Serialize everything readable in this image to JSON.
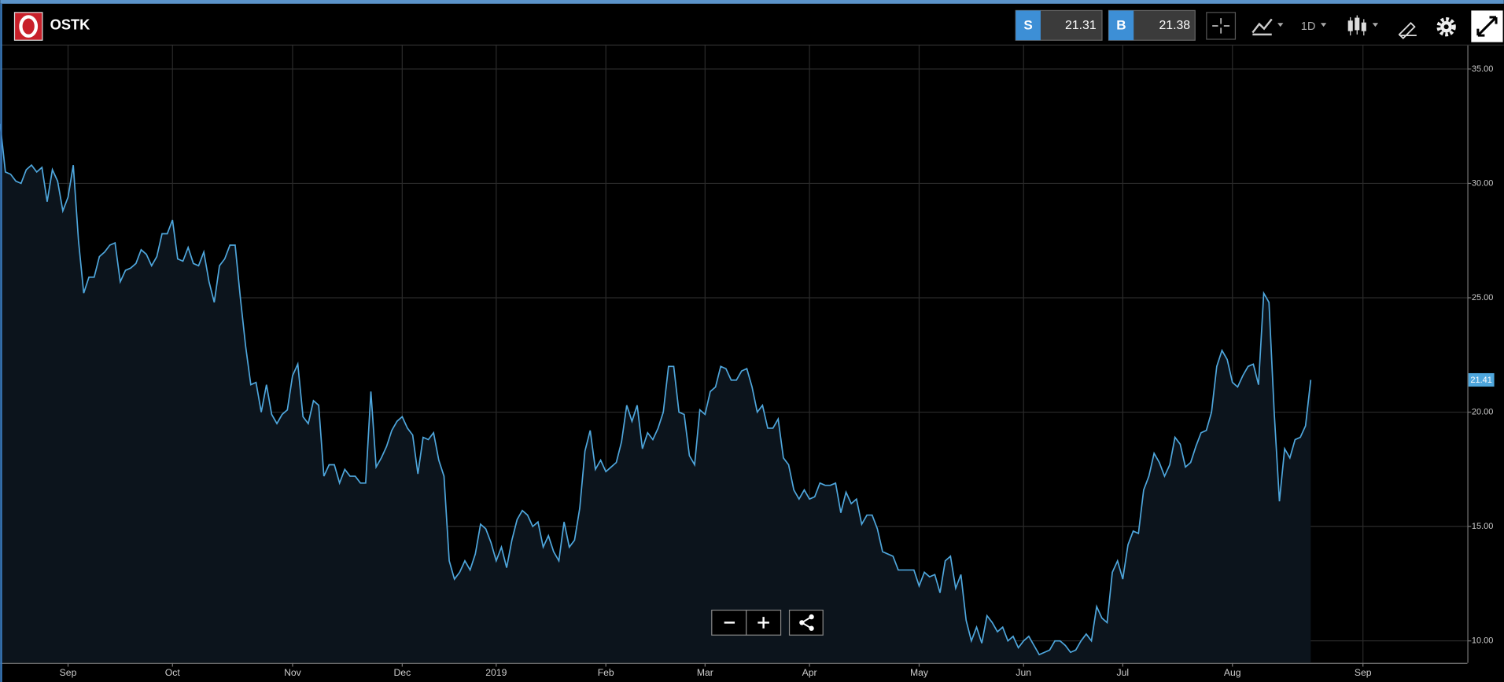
{
  "ui": {
    "symbol": "OSTK",
    "sell": {
      "label": "S",
      "price": 21.31
    },
    "buy": {
      "label": "B",
      "price": 21.38
    },
    "interval": "1D"
  },
  "chart_data": {
    "type": "line",
    "color": "#4ea6dc",
    "fill": "#0c141c",
    "grid": true,
    "categories": [
      null,
      null,
      null,
      null,
      null,
      null,
      null,
      null,
      null,
      null,
      null,
      null,
      null,
      "Sep",
      null,
      null,
      null,
      null,
      null,
      null,
      null,
      null,
      null,
      null,
      null,
      null,
      null,
      null,
      null,
      null,
      null,
      null,
      null,
      "Oct",
      null,
      null,
      null,
      null,
      null,
      null,
      null,
      null,
      null,
      null,
      null,
      null,
      null,
      null,
      null,
      null,
      null,
      null,
      null,
      null,
      null,
      null,
      "Nov",
      null,
      null,
      null,
      null,
      null,
      null,
      null,
      null,
      null,
      null,
      null,
      null,
      null,
      null,
      null,
      null,
      null,
      null,
      null,
      null,
      "Dec",
      null,
      null,
      null,
      null,
      null,
      null,
      null,
      null,
      null,
      null,
      null,
      null,
      null,
      null,
      null,
      null,
      null,
      "2019",
      null,
      null,
      null,
      null,
      null,
      null,
      null,
      null,
      null,
      null,
      null,
      null,
      null,
      null,
      null,
      null,
      null,
      null,
      null,
      null,
      "Feb",
      null,
      null,
      null,
      null,
      null,
      null,
      null,
      null,
      null,
      null,
      null,
      null,
      null,
      null,
      null,
      null,
      null,
      null,
      "Mar",
      null,
      null,
      null,
      null,
      null,
      null,
      null,
      null,
      null,
      null,
      null,
      null,
      null,
      null,
      null,
      null,
      null,
      null,
      null,
      "Apr",
      null,
      null,
      null,
      null,
      null,
      null,
      null,
      null,
      null,
      null,
      null,
      null,
      null,
      null,
      null,
      null,
      null,
      null,
      null,
      null,
      "May",
      null,
      null,
      null,
      null,
      null,
      null,
      null,
      null,
      null,
      null,
      null,
      null,
      null,
      null,
      null,
      null,
      null,
      null,
      null,
      "Jun",
      null,
      null,
      null,
      null,
      null,
      null,
      null,
      null,
      null,
      null,
      null,
      null,
      null,
      null,
      null,
      null,
      null,
      null,
      "Jul",
      null,
      null,
      null,
      null,
      null,
      null,
      null,
      null,
      null,
      null,
      null,
      null,
      null,
      null,
      null,
      null,
      null,
      null,
      null,
      null,
      "Aug",
      null,
      null,
      null,
      null,
      null,
      null,
      null,
      null,
      null,
      null,
      null,
      null,
      null,
      null,
      null,
      null,
      null,
      null,
      null,
      null,
      null,
      null,
      null,
      null,
      "Sep",
      null,
      null,
      null,
      null,
      null,
      null,
      null,
      null,
      null,
      null,
      null,
      null,
      null,
      null,
      null,
      null,
      null,
      null,
      null,
      null
    ],
    "values": [
      32.6,
      30.5,
      30.4,
      30.1,
      30.0,
      30.6,
      30.8,
      30.5,
      30.7,
      29.2,
      30.6,
      30.1,
      28.8,
      29.4,
      30.8,
      27.5,
      25.2,
      25.9,
      25.9,
      26.8,
      27.0,
      27.3,
      27.4,
      25.7,
      26.2,
      26.3,
      26.5,
      27.1,
      26.9,
      26.4,
      26.8,
      27.8,
      27.8,
      28.4,
      26.7,
      26.6,
      27.2,
      26.5,
      26.4,
      27.0,
      25.7,
      24.8,
      26.4,
      26.7,
      27.3,
      27.3,
      25.0,
      22.9,
      21.2,
      21.3,
      20.0,
      21.2,
      19.9,
      19.5,
      19.9,
      20.1,
      21.6,
      22.1,
      19.8,
      19.5,
      20.5,
      20.3,
      17.2,
      17.7,
      17.7,
      16.9,
      17.5,
      17.2,
      17.2,
      16.9,
      16.9,
      20.9,
      17.6,
      18.0,
      18.5,
      19.2,
      19.6,
      19.8,
      19.3,
      19.0,
      17.3,
      18.9,
      18.8,
      19.1,
      17.9,
      17.2,
      13.5,
      12.7,
      13.0,
      13.5,
      13.1,
      13.8,
      15.1,
      14.9,
      14.3,
      13.5,
      14.1,
      13.2,
      14.4,
      15.3,
      15.7,
      15.5,
      15.0,
      15.2,
      14.1,
      14.6,
      13.9,
      13.5,
      15.2,
      14.1,
      14.4,
      15.8,
      18.3,
      19.2,
      17.5,
      17.9,
      17.4,
      17.6,
      17.8,
      18.7,
      20.3,
      19.6,
      20.3,
      18.4,
      19.1,
      18.8,
      19.3,
      20.0,
      22.0,
      22.0,
      20.0,
      19.9,
      18.1,
      17.7,
      20.1,
      19.9,
      20.9,
      21.1,
      22.0,
      21.9,
      21.4,
      21.4,
      21.8,
      21.9,
      21.1,
      20.0,
      20.3,
      19.3,
      19.3,
      19.7,
      18.0,
      17.7,
      16.6,
      16.2,
      16.6,
      16.2,
      16.3,
      16.9,
      16.8,
      16.8,
      16.9,
      15.6,
      16.5,
      16.0,
      16.2,
      15.1,
      15.5,
      15.5,
      14.9,
      13.9,
      13.8,
      13.7,
      13.1,
      13.1,
      13.1,
      13.1,
      12.4,
      13.0,
      12.8,
      12.9,
      12.1,
      13.5,
      13.7,
      12.3,
      12.9,
      10.9,
      10.0,
      10.6,
      9.9,
      11.1,
      10.8,
      10.4,
      10.6,
      10.0,
      10.2,
      9.7,
      10.0,
      10.2,
      9.8,
      9.4,
      9.5,
      9.6,
      10.0,
      10.0,
      9.8,
      9.5,
      9.6,
      10.0,
      10.3,
      10.0,
      11.5,
      11.0,
      10.8,
      13.0,
      13.5,
      12.7,
      14.2,
      14.8,
      14.7,
      16.6,
      17.2,
      18.2,
      17.8,
      17.2,
      17.7,
      18.9,
      18.6,
      17.6,
      17.8,
      18.5,
      19.1,
      19.2,
      20.0,
      22.0,
      22.7,
      22.3,
      21.3,
      21.1,
      21.6,
      22.0,
      22.1,
      21.2,
      25.2,
      24.8,
      20.0,
      16.1,
      18.4,
      18.0,
      18.8,
      18.9,
      19.4,
      21.41,
      null,
      null,
      null,
      null,
      null,
      null,
      null,
      null,
      null,
      null,
      null,
      null,
      null,
      null,
      null,
      null,
      null,
      null,
      null,
      null,
      null,
      null,
      null,
      null,
      null,
      null,
      null,
      null,
      null,
      null
    ],
    "ylim": [
      9.04,
      36.05
    ],
    "yticks": [
      {
        "value": 10,
        "label": "10.00"
      },
      {
        "value": 15,
        "label": "15.00"
      },
      {
        "value": 20,
        "label": "20.00"
      },
      {
        "value": 25,
        "label": "25.00"
      },
      {
        "value": 30,
        "label": "30.00"
      },
      {
        "value": 35,
        "label": "35.00"
      }
    ]
  }
}
